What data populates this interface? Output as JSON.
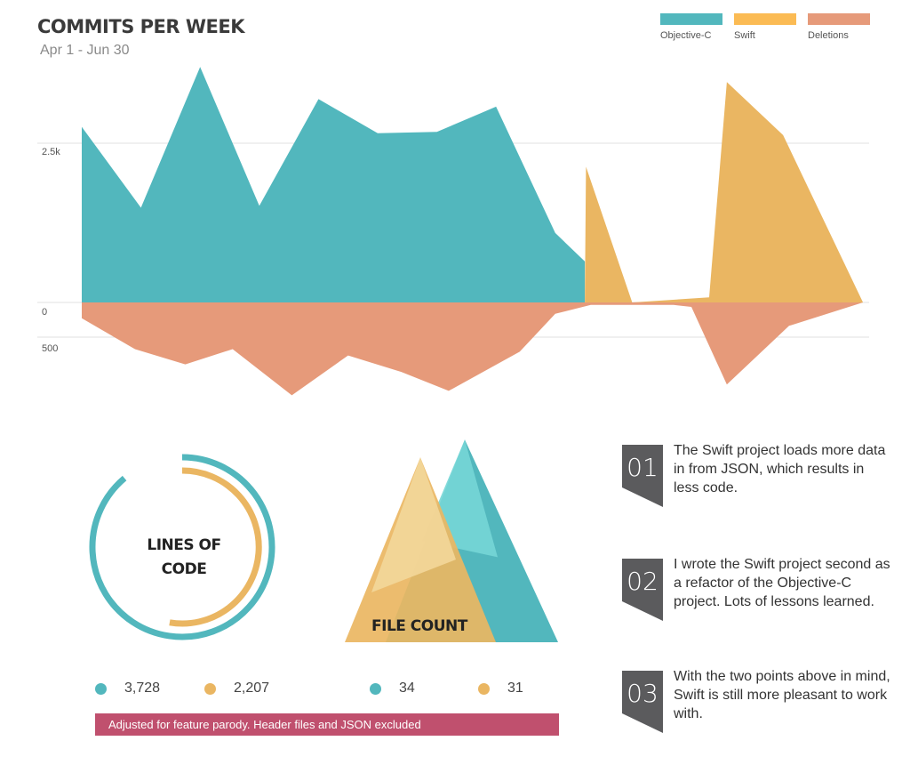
{
  "header": {
    "title": "COMMITS PER WEEK",
    "subtitle": "Apr 1 - Jun 30"
  },
  "legend": [
    {
      "label": "Objective-C",
      "color": "#52b7bd"
    },
    {
      "label": "Swift",
      "color": "#eab662"
    },
    {
      "label": "Deletions",
      "color": "#e69a7a"
    }
  ],
  "chart_data": [
    {
      "type": "area",
      "title": "COMMITS PER WEEK",
      "subtitle": "Apr 1 - Jun 30",
      "y_tick_labels": [
        "2.5k",
        "0",
        "500"
      ],
      "grid": true,
      "legend_position": "top-right",
      "series": [
        {
          "name": "Objective-C",
          "color": "#52b7bd",
          "points": [
            [
              0,
              2780
            ],
            [
              1,
              1500
            ],
            [
              2,
              3730
            ],
            [
              3,
              1530
            ],
            [
              4,
              3220
            ],
            [
              5,
              2680
            ],
            [
              6,
              2700
            ],
            [
              7,
              3100
            ],
            [
              8,
              1100
            ],
            [
              8.5,
              650
            ]
          ]
        },
        {
          "name": "Swift",
          "color": "#eab662",
          "points": [
            [
              8.5,
              0
            ],
            [
              8.52,
              2150
            ],
            [
              9.3,
              0
            ],
            [
              10.6,
              80
            ],
            [
              10.9,
              3490
            ],
            [
              11.85,
              2650
            ],
            [
              13.2,
              0
            ]
          ]
        },
        {
          "name": "Deletions",
          "color": "#e69a7a",
          "points": [
            [
              0,
              -250
            ],
            [
              0.9,
              -740
            ],
            [
              1.75,
              -980
            ],
            [
              2.55,
              -740
            ],
            [
              3.55,
              -1470
            ],
            [
              4.5,
              -840
            ],
            [
              5.4,
              -1100
            ],
            [
              6.2,
              -1400
            ],
            [
              7.4,
              -780
            ],
            [
              8.0,
              -180
            ],
            [
              8.6,
              -40
            ],
            [
              10.0,
              -40
            ],
            [
              10.3,
              -70
            ],
            [
              10.9,
              -1300
            ],
            [
              11.95,
              -370
            ],
            [
              13.2,
              0
            ]
          ]
        }
      ]
    },
    {
      "type": "pie",
      "title": "LINES OF CODE",
      "series": [
        {
          "name": "Objective-C",
          "value": 3728,
          "color": "#52b7bd"
        },
        {
          "name": "Swift",
          "value": 2207,
          "color": "#eab662"
        }
      ]
    },
    {
      "type": "bar",
      "title": "FILE COUNT",
      "series": [
        {
          "name": "Objective-C",
          "value": 34,
          "color": "#52b7bd"
        },
        {
          "name": "Swift",
          "value": 31,
          "color": "#eab662"
        }
      ]
    }
  ],
  "loc": {
    "label_line1": "LINES OF",
    "label_line2": "CODE",
    "objc_value": "3,728",
    "swift_value": "2,207"
  },
  "files": {
    "label": "FILE COUNT",
    "objc_value": "34",
    "swift_value": "31"
  },
  "note": "Adjusted for feature parody. Header files and JSON excluded",
  "callouts": [
    {
      "num": "01",
      "text": "The Swift project loads more data in from JSON, which results in less code."
    },
    {
      "num": "02",
      "text": "I wrote the Swift project second as a refactor of the Objective-C project. Lots of lessons learned."
    },
    {
      "num": "03",
      "text": "With the two points above in mind, Swift is still more pleasant to work with."
    }
  ]
}
